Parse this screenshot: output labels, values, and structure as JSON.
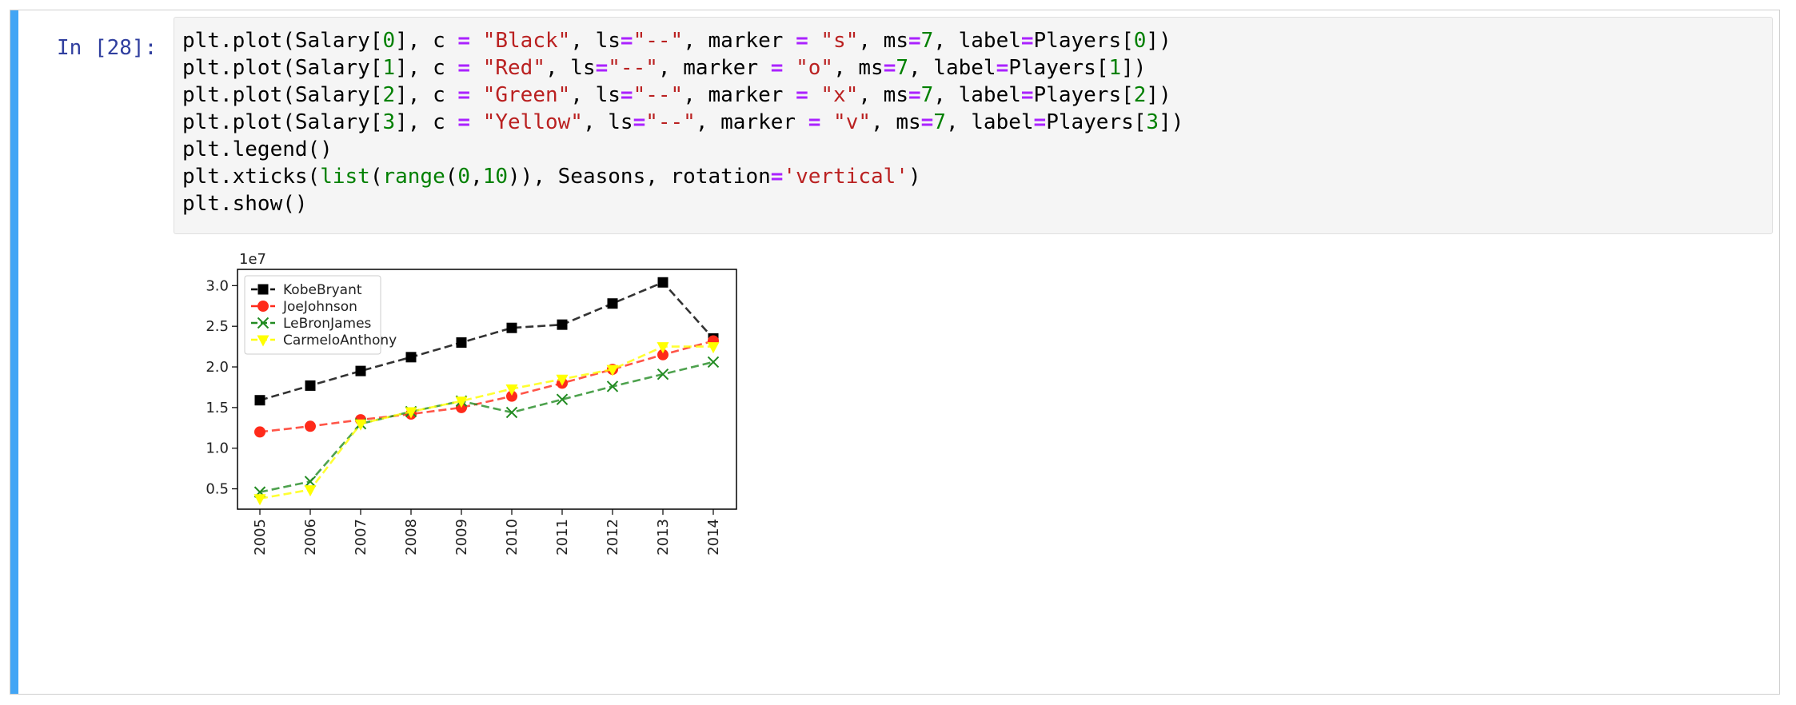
{
  "prompt_label": "In [28]:",
  "code_lines": [
    [
      [
        "t",
        "plt.plot(Salary["
      ],
      [
        "n",
        "0"
      ],
      [
        "t",
        "], c "
      ],
      [
        "o",
        "="
      ],
      [
        "t",
        " "
      ],
      [
        "s",
        "\"Black\""
      ],
      [
        "t",
        ", ls"
      ],
      [
        "o",
        "="
      ],
      [
        "s",
        "\"--\""
      ],
      [
        "t",
        ", marker "
      ],
      [
        "o",
        "="
      ],
      [
        "t",
        " "
      ],
      [
        "s",
        "\"s\""
      ],
      [
        "t",
        ", ms"
      ],
      [
        "o",
        "="
      ],
      [
        "n",
        "7"
      ],
      [
        "t",
        ", label"
      ],
      [
        "o",
        "="
      ],
      [
        "t",
        "Players["
      ],
      [
        "n",
        "0"
      ],
      [
        "t",
        "])"
      ]
    ],
    [
      [
        "t",
        "plt.plot(Salary["
      ],
      [
        "n",
        "1"
      ],
      [
        "t",
        "], c "
      ],
      [
        "o",
        "="
      ],
      [
        "t",
        " "
      ],
      [
        "s",
        "\"Red\""
      ],
      [
        "t",
        ", ls"
      ],
      [
        "o",
        "="
      ],
      [
        "s",
        "\"--\""
      ],
      [
        "t",
        ", marker "
      ],
      [
        "o",
        "="
      ],
      [
        "t",
        " "
      ],
      [
        "s",
        "\"o\""
      ],
      [
        "t",
        ", ms"
      ],
      [
        "o",
        "="
      ],
      [
        "n",
        "7"
      ],
      [
        "t",
        ", label"
      ],
      [
        "o",
        "="
      ],
      [
        "t",
        "Players["
      ],
      [
        "n",
        "1"
      ],
      [
        "t",
        "])"
      ]
    ],
    [
      [
        "t",
        "plt.plot(Salary["
      ],
      [
        "n",
        "2"
      ],
      [
        "t",
        "], c "
      ],
      [
        "o",
        "="
      ],
      [
        "t",
        " "
      ],
      [
        "s",
        "\"Green\""
      ],
      [
        "t",
        ", ls"
      ],
      [
        "o",
        "="
      ],
      [
        "s",
        "\"--\""
      ],
      [
        "t",
        ", marker "
      ],
      [
        "o",
        "="
      ],
      [
        "t",
        " "
      ],
      [
        "s",
        "\"x\""
      ],
      [
        "t",
        ", ms"
      ],
      [
        "o",
        "="
      ],
      [
        "n",
        "7"
      ],
      [
        "t",
        ", label"
      ],
      [
        "o",
        "="
      ],
      [
        "t",
        "Players["
      ],
      [
        "n",
        "2"
      ],
      [
        "t",
        "])"
      ]
    ],
    [
      [
        "t",
        "plt.plot(Salary["
      ],
      [
        "n",
        "3"
      ],
      [
        "t",
        "], c "
      ],
      [
        "o",
        "="
      ],
      [
        "t",
        " "
      ],
      [
        "s",
        "\"Yellow\""
      ],
      [
        "t",
        ", ls"
      ],
      [
        "o",
        "="
      ],
      [
        "s",
        "\"--\""
      ],
      [
        "t",
        ", marker "
      ],
      [
        "o",
        "="
      ],
      [
        "t",
        " "
      ],
      [
        "s",
        "\"v\""
      ],
      [
        "t",
        ", ms"
      ],
      [
        "o",
        "="
      ],
      [
        "n",
        "7"
      ],
      [
        "t",
        ", label"
      ],
      [
        "o",
        "="
      ],
      [
        "t",
        "Players["
      ],
      [
        "n",
        "3"
      ],
      [
        "t",
        "])"
      ]
    ],
    [
      [
        "t",
        "plt.legend()"
      ]
    ],
    [
      [
        "t",
        "plt.xticks("
      ],
      [
        "f",
        "list"
      ],
      [
        "t",
        "("
      ],
      [
        "f",
        "range"
      ],
      [
        "t",
        "("
      ],
      [
        "n",
        "0"
      ],
      [
        "t",
        ","
      ],
      [
        "n",
        "10"
      ],
      [
        "t",
        ")), Seasons, rotation"
      ],
      [
        "o",
        "="
      ],
      [
        "s",
        "'vertical'"
      ],
      [
        "t",
        ")"
      ]
    ],
    [
      [
        "t",
        "plt.show()"
      ]
    ]
  ],
  "colors": {
    "cell_bar": "#42a5f5",
    "prompt": "#303f9f",
    "number": "#008000",
    "string": "#ba2121",
    "operator": "#aa22ff"
  },
  "chart_data": {
    "type": "line",
    "x": [
      "2005",
      "2006",
      "2007",
      "2008",
      "2009",
      "2010",
      "2011",
      "2012",
      "2013",
      "2014"
    ],
    "exponent_label": "1e7",
    "ylim": [
      0.25,
      3.2
    ],
    "yticks": [
      "0.5",
      "1.0",
      "1.5",
      "2.0",
      "2.5",
      "3.0"
    ],
    "ytick_values": [
      0.5,
      1.0,
      1.5,
      2.0,
      2.5,
      3.0
    ],
    "legend_position": "upper left",
    "grid": false,
    "series": [
      {
        "name": "KobeBryant",
        "color": "#000000",
        "marker": "square",
        "values": [
          1.59,
          1.77,
          1.95,
          2.12,
          2.3,
          2.48,
          2.52,
          2.78,
          3.04,
          2.35
        ]
      },
      {
        "name": "JoeJohnson",
        "color": "#ff2a1a",
        "marker": "circle",
        "values": [
          1.2,
          1.27,
          1.35,
          1.42,
          1.5,
          1.64,
          1.8,
          1.97,
          2.15,
          2.32
        ]
      },
      {
        "name": "LeBronJames",
        "color": "#228b22",
        "marker": "x",
        "values": [
          0.46,
          0.59,
          1.3,
          1.45,
          1.58,
          1.44,
          1.6,
          1.76,
          1.91,
          2.06
        ]
      },
      {
        "name": "CarmeloAnthony",
        "color": "#ffff00",
        "marker": "triangle-down",
        "values": [
          0.38,
          0.49,
          1.3,
          1.45,
          1.58,
          1.73,
          1.85,
          1.97,
          2.25,
          2.25
        ]
      }
    ]
  }
}
